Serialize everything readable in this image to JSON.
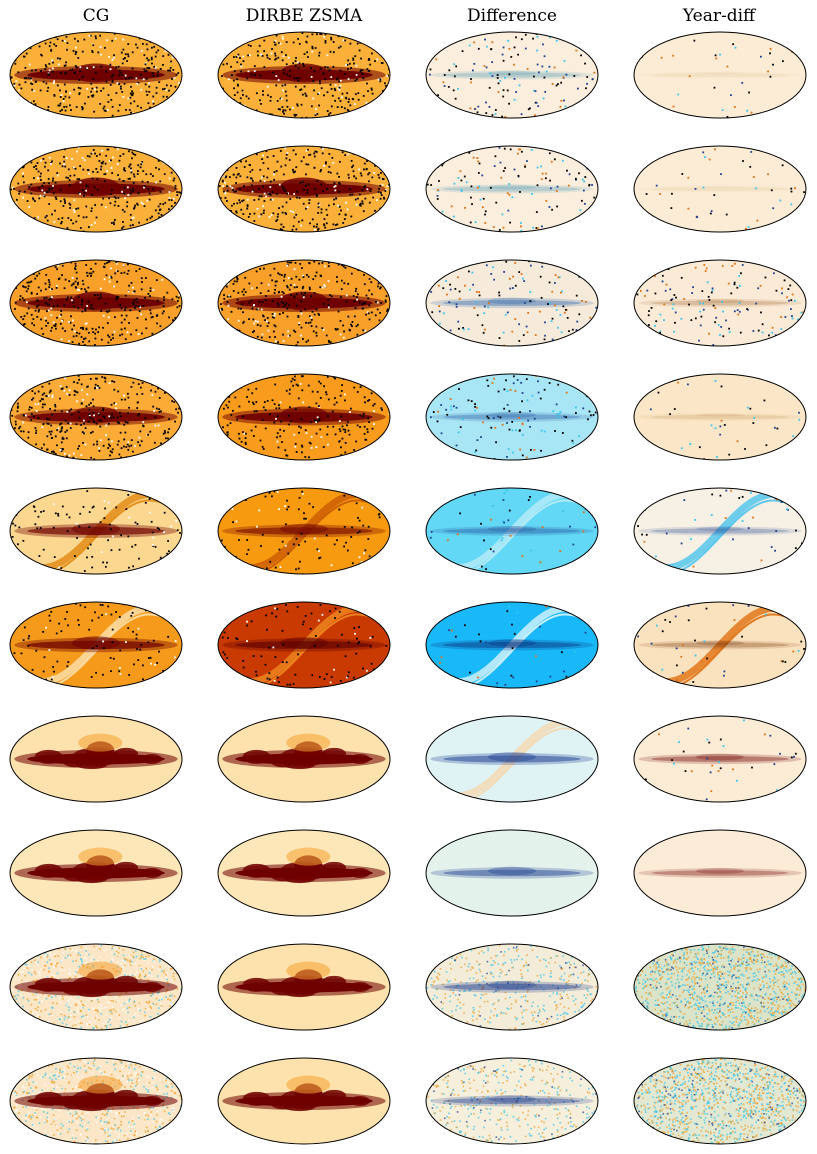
{
  "columns": [
    {
      "title": "CG",
      "scheme": "heat"
    },
    {
      "title": "DIRBE ZSMA",
      "scheme": "heat"
    },
    {
      "title": "Difference",
      "scheme": "diverging"
    },
    {
      "title": "Year-diff",
      "scheme": "diverging"
    }
  ],
  "rows": [
    {
      "maps": [
        {
          "bg": "#fbb03a",
          "band": "#6e0000",
          "band_strength": 1.0,
          "speckle": "dense_dark",
          "noise": "low"
        },
        {
          "bg": "#fbb03a",
          "band": "#6e0000",
          "band_strength": 1.0,
          "speckle": "dense_dark",
          "noise": "low"
        },
        {
          "bg": "#fbeedd",
          "band": "#3a8fb0",
          "band_strength": 0.25,
          "speckle": "sparse_mixed",
          "noise": "low"
        },
        {
          "bg": "#fcecd6",
          "band": "#c8a060",
          "band_strength": 0.1,
          "speckle": "very_sparse",
          "noise": "low"
        }
      ]
    },
    {
      "maps": [
        {
          "bg": "#fbb03a",
          "band": "#6e0000",
          "band_strength": 1.0,
          "speckle": "dense_dark",
          "noise": "low"
        },
        {
          "bg": "#fbb03a",
          "band": "#6e0000",
          "band_strength": 1.0,
          "speckle": "dense_dark",
          "noise": "low"
        },
        {
          "bg": "#fbeedd",
          "band": "#3a8fb0",
          "band_strength": 0.25,
          "speckle": "sparse_mixed",
          "noise": "low"
        },
        {
          "bg": "#fcecd6",
          "band": "#c8a060",
          "band_strength": 0.1,
          "speckle": "very_sparse",
          "noise": "low"
        }
      ]
    },
    {
      "maps": [
        {
          "bg": "#f9a02a",
          "band": "#6e0000",
          "band_strength": 1.0,
          "speckle": "dense_dark",
          "noise": "low"
        },
        {
          "bg": "#f9a02a",
          "band": "#6e0000",
          "band_strength": 1.0,
          "speckle": "dense_dark",
          "noise": "low"
        },
        {
          "bg": "#f6ebdb",
          "band": "#1f5ea8",
          "band_strength": 0.35,
          "speckle": "sparse_mixed",
          "noise": "low"
        },
        {
          "bg": "#fbebd6",
          "band": "#8c4a10",
          "band_strength": 0.2,
          "speckle": "sparse_mixed",
          "noise": "low"
        }
      ]
    },
    {
      "maps": [
        {
          "bg": "#fbab36",
          "band": "#6e0000",
          "band_strength": 0.9,
          "speckle": "dense_dark",
          "noise": "low"
        },
        {
          "bg": "#f99b1c",
          "band": "#6e0000",
          "band_strength": 0.9,
          "speckle": "medium_dark",
          "noise": "low"
        },
        {
          "bg": "#a9e6f5",
          "band": "#1f4fa0",
          "band_strength": 0.3,
          "speckle": "sparse_mixed",
          "noise": "low"
        },
        {
          "bg": "#fbe7c8",
          "band": "#b07020",
          "band_strength": 0.15,
          "speckle": "very_sparse",
          "noise": "low"
        }
      ]
    },
    {
      "maps": [
        {
          "bg": "#fcd790",
          "band": "#6e0000",
          "band_strength": 0.65,
          "speckle": "sparse_dark",
          "noise": "low",
          "swirl": "#e08a10"
        },
        {
          "bg": "#f79a10",
          "band": "#6e0000",
          "band_strength": 0.55,
          "speckle": "sparse_dark",
          "noise": "low",
          "swirl": "#c85a00"
        },
        {
          "bg": "#62d8f6",
          "band": "#1f3f90",
          "band_strength": 0.3,
          "speckle": "very_sparse",
          "noise": "low",
          "swirl": "#b8ecf7"
        },
        {
          "bg": "#f7f0e4",
          "band": "#1f3f90",
          "band_strength": 0.25,
          "speckle": "very_sparse",
          "noise": "low",
          "swirl": "#4cc4ee"
        }
      ]
    },
    {
      "maps": [
        {
          "bg": "#f59a1a",
          "band": "#6e0000",
          "band_strength": 0.7,
          "speckle": "sparse_dark",
          "noise": "low",
          "swirl": "#fde2b0"
        },
        {
          "bg": "#c93a00",
          "band": "#5a0000",
          "band_strength": 0.6,
          "speckle": "sparse_dark",
          "noise": "low",
          "swirl": "#f08a20"
        },
        {
          "bg": "#19b8f8",
          "band": "#0a2a78",
          "band_strength": 0.4,
          "speckle": "very_sparse",
          "noise": "low",
          "swirl": "#d8f4fb"
        },
        {
          "bg": "#fbe2bf",
          "band": "#6a2a00",
          "band_strength": 0.25,
          "speckle": "very_sparse",
          "noise": "low",
          "swirl": "#e07010"
        }
      ]
    },
    {
      "maps": [
        {
          "bg": "#fde2ae",
          "band": "#6e0000",
          "band_strength": 1.0,
          "speckle": "none",
          "noise": "low",
          "blobs": true
        },
        {
          "bg": "#fde2ae",
          "band": "#6e0000",
          "band_strength": 1.0,
          "speckle": "none",
          "noise": "low",
          "blobs": true
        },
        {
          "bg": "#dff3f5",
          "band": "#1f3f90",
          "band_strength": 0.5,
          "speckle": "none",
          "noise": "low",
          "swirl": "#f5d8b0"
        },
        {
          "bg": "#fcecd6",
          "band": "#6e0000",
          "band_strength": 0.35,
          "speckle": "very_sparse",
          "noise": "low"
        }
      ]
    },
    {
      "maps": [
        {
          "bg": "#fde6b8",
          "band": "#6e0000",
          "band_strength": 1.0,
          "speckle": "none",
          "noise": "low",
          "blobs": true
        },
        {
          "bg": "#fde6b8",
          "band": "#6e0000",
          "band_strength": 1.0,
          "speckle": "none",
          "noise": "low",
          "blobs": true
        },
        {
          "bg": "#e4f2ec",
          "band": "#1f3f90",
          "band_strength": 0.45,
          "speckle": "none",
          "noise": "low"
        },
        {
          "bg": "#fcebd6",
          "band": "#6e0000",
          "band_strength": 0.3,
          "speckle": "none",
          "noise": "low"
        }
      ]
    },
    {
      "maps": [
        {
          "bg": "#fbe7c8",
          "band": "#6e0000",
          "band_strength": 1.0,
          "speckle": "none",
          "noise": "high",
          "blobs": true
        },
        {
          "bg": "#fde2ae",
          "band": "#6e0000",
          "band_strength": 1.0,
          "speckle": "none",
          "noise": "low",
          "blobs": true
        },
        {
          "bg": "#f3ecd8",
          "band": "#1f3f90",
          "band_strength": 0.45,
          "speckle": "none",
          "noise": "medium"
        },
        {
          "bg": "#dbe4c8",
          "band": "#7a8a50",
          "band_strength": 0.0,
          "speckle": "none",
          "noise": "very_high"
        }
      ]
    },
    {
      "maps": [
        {
          "bg": "#fbe7c8",
          "band": "#6e0000",
          "band_strength": 1.0,
          "speckle": "none",
          "noise": "high",
          "blobs": true
        },
        {
          "bg": "#fde2ae",
          "band": "#6e0000",
          "band_strength": 1.0,
          "speckle": "none",
          "noise": "low",
          "blobs": true
        },
        {
          "bg": "#f5efdc",
          "band": "#1f3f90",
          "band_strength": 0.4,
          "speckle": "none",
          "noise": "medium"
        },
        {
          "bg": "#e2e8d2",
          "band": "#7a8a50",
          "band_strength": 0.0,
          "speckle": "none",
          "noise": "very_high"
        }
      ]
    }
  ]
}
